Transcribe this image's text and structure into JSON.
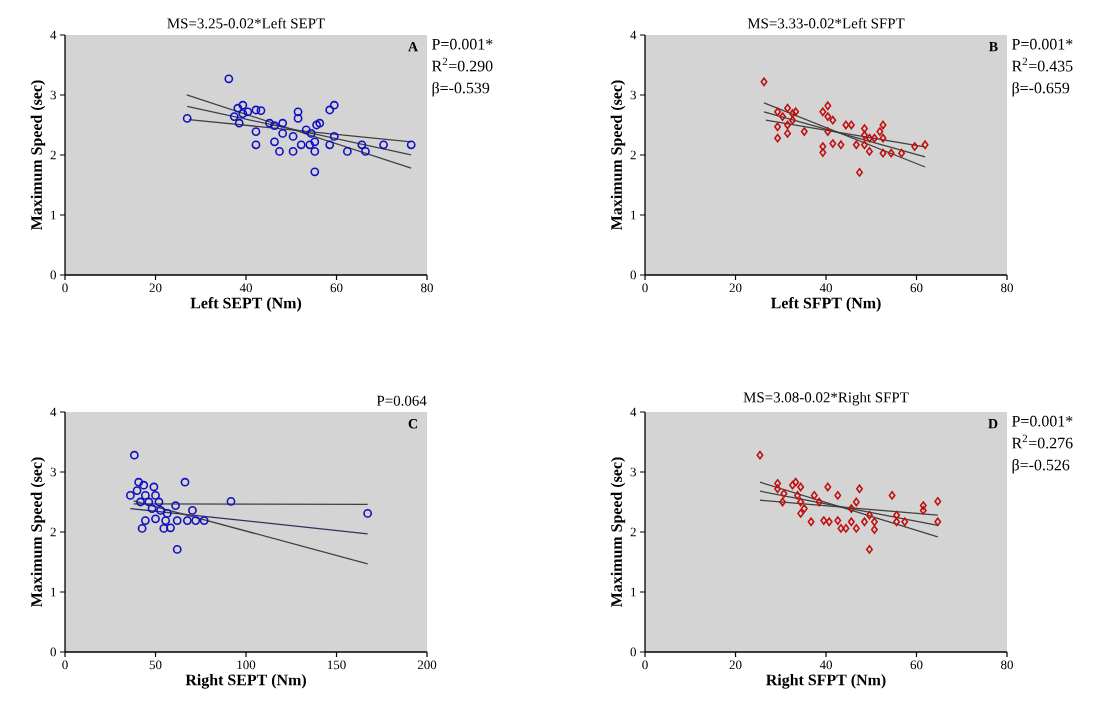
{
  "chart_data": [
    {
      "type": "scatter",
      "title": "MS=3.25-0.02*Left SEPT",
      "xlabel": "Left SEPT (Nm)",
      "ylabel": "Maximum Speed (sec)",
      "xlim": [
        0,
        80
      ],
      "xticks": [
        0,
        20,
        40,
        60,
        80
      ],
      "ylim": [
        0,
        4
      ],
      "yticks": [
        0,
        1,
        2,
        3,
        4
      ],
      "marker": "circle",
      "annotations": [
        "A",
        "P=0.001*",
        "R$^{2}$=0.290",
        "β=-0.539"
      ],
      "series": [
        {
          "color": "#1010c0",
          "x": [
            36.2,
            27.0,
            38.2,
            39.3,
            37.4,
            38.5,
            39.3,
            40.4,
            42.2,
            43.3,
            42.2,
            42.2,
            45.2,
            46.3,
            48.1,
            46.3,
            47.4,
            48.1,
            50.4,
            50.4,
            51.5,
            51.5,
            52.2,
            53.3,
            54.4,
            54.1,
            55.2,
            55.2,
            55.6,
            56.3,
            55.2,
            58.5,
            59.5,
            58.5,
            59.5,
            62.4,
            65.6,
            66.4,
            70.4,
            76.5
          ],
          "values": [
            3.27,
            2.61,
            2.78,
            2.83,
            2.64,
            2.53,
            2.69,
            2.72,
            2.75,
            2.74,
            2.39,
            2.17,
            2.53,
            2.49,
            2.53,
            2.22,
            2.06,
            2.36,
            2.31,
            2.06,
            2.72,
            2.61,
            2.17,
            2.42,
            2.36,
            2.17,
            2.22,
            2.06,
            2.5,
            2.53,
            1.72,
            2.75,
            2.83,
            2.17,
            2.31,
            2.06,
            2.17,
            2.06,
            2.17,
            2.17
          ]
        },
        {
          "type": "line",
          "marker": "none",
          "color": "#404040",
          "x": [
            27.0,
            76.5
          ],
          "values": [
            2.81,
            2.0
          ]
        },
        {
          "type": "line",
          "marker": "none",
          "color": "#404040",
          "x": [
            26.9,
            76.5
          ],
          "values": [
            3.0,
            1.78
          ]
        },
        {
          "type": "line",
          "marker": "none",
          "color": "#404040",
          "x": [
            27.4,
            76.5
          ],
          "values": [
            2.59,
            2.22
          ]
        }
      ]
    },
    {
      "type": "scatter",
      "title": "MS=3.33-0.02*Left SFPT",
      "xlabel": "Left SFPT (Nm)",
      "ylabel": "Maximum Speed (sec)",
      "xlim": [
        0,
        80
      ],
      "xticks": [
        0,
        20,
        40,
        60,
        80
      ],
      "ylim": [
        0,
        4
      ],
      "yticks": [
        0,
        1,
        2,
        3,
        4
      ],
      "marker": "diamond",
      "annotations": [
        "B",
        "P=0.001*",
        "R$^{2}$=0.435",
        "β=-0.659"
      ],
      "series": [
        {
          "color": "#c01010",
          "x": [
            26.3,
            29.3,
            29.3,
            29.3,
            30.4,
            31.5,
            31.5,
            31.5,
            32.6,
            32.6,
            33.3,
            35.2,
            39.3,
            40.4,
            40.4,
            41.5,
            40.4,
            39.3,
            39.3,
            41.5,
            43.3,
            44.4,
            45.6,
            46.7,
            48.5,
            48.5,
            49.6,
            48.5,
            49.6,
            50.7,
            51.9,
            52.6,
            52.6,
            52.6,
            54.4,
            56.7,
            59.6,
            61.9,
            47.4
          ],
          "values": [
            3.22,
            2.72,
            2.47,
            2.28,
            2.64,
            2.78,
            2.5,
            2.36,
            2.69,
            2.58,
            2.72,
            2.39,
            2.72,
            2.82,
            2.64,
            2.58,
            2.39,
            2.14,
            2.04,
            2.19,
            2.17,
            2.5,
            2.5,
            2.17,
            2.44,
            2.33,
            2.28,
            2.17,
            2.06,
            2.28,
            2.39,
            2.5,
            2.28,
            2.03,
            2.03,
            2.03,
            2.14,
            2.17,
            1.71
          ]
        },
        {
          "type": "line",
          "marker": "none",
          "color": "#404040",
          "x": [
            26.3,
            61.9
          ],
          "values": [
            2.72,
            1.97
          ]
        },
        {
          "type": "line",
          "marker": "none",
          "color": "#404040",
          "x": [
            26.3,
            61.9
          ],
          "values": [
            2.87,
            1.8
          ]
        },
        {
          "type": "line",
          "marker": "none",
          "color": "#404040",
          "x": [
            26.7,
            61.5
          ],
          "values": [
            2.58,
            2.14
          ]
        }
      ]
    },
    {
      "type": "scatter",
      "xlabel": "Right SEPT (Nm)",
      "ylabel": "Maximum Speed (sec)",
      "xlim": [
        0,
        200
      ],
      "xticks": [
        0,
        50,
        100,
        150,
        200
      ],
      "ylim": [
        0,
        4
      ],
      "yticks": [
        0,
        1,
        2,
        3,
        4
      ],
      "marker": "circle",
      "annotations": [
        "C",
        "P=0.064"
      ],
      "series": [
        {
          "color": "#1010c0",
          "x": [
            38.3,
            66.3,
            91.7,
            167.2,
            62.0,
            36.1,
            40.7,
            43.5,
            49.1,
            39.8,
            44.4,
            50.0,
            41.7,
            46.3,
            51.9,
            48.1,
            52.8,
            61.1,
            70.4,
            44.4,
            50.0,
            55.6,
            62.0,
            67.6,
            72.2,
            76.9,
            42.6,
            54.6,
            58.3,
            56.5
          ],
          "values": [
            3.28,
            2.83,
            2.51,
            2.31,
            1.71,
            2.61,
            2.83,
            2.78,
            2.75,
            2.69,
            2.61,
            2.61,
            2.5,
            2.5,
            2.5,
            2.39,
            2.36,
            2.44,
            2.36,
            2.19,
            2.22,
            2.19,
            2.19,
            2.19,
            2.19,
            2.19,
            2.06,
            2.06,
            2.07,
            2.31
          ]
        },
        {
          "type": "line",
          "marker": "none",
          "color": "#303060",
          "x": [
            36.1,
            167.2
          ],
          "values": [
            2.39,
            1.97
          ]
        },
        {
          "type": "line",
          "marker": "none",
          "color": "#404040",
          "x": [
            37.9,
            167.2
          ],
          "values": [
            2.47,
            2.46
          ]
        },
        {
          "type": "line",
          "marker": "none",
          "color": "#404040",
          "x": [
            37.9,
            167.2
          ],
          "values": [
            2.52,
            1.47
          ]
        }
      ]
    },
    {
      "type": "scatter",
      "title": "MS=3.08-0.02*Right SFPT",
      "xlabel": "Right SFPT (Nm)",
      "ylabel": "Maximum Speed (sec)",
      "xlim": [
        0,
        80
      ],
      "xticks": [
        0,
        20,
        40,
        60,
        80
      ],
      "ylim": [
        0,
        4
      ],
      "yticks": [
        0,
        1,
        2,
        3,
        4
      ],
      "marker": "diamond",
      "annotations": [
        "D",
        "P=0.001*",
        "R$^{2}$=0.276",
        "β=-0.526"
      ],
      "series": [
        {
          "color": "#c01010",
          "x": [
            25.4,
            29.3,
            29.3,
            30.4,
            30.7,
            32.6,
            33.3,
            33.7,
            34.4,
            34.4,
            35.2,
            34.4,
            36.7,
            37.4,
            38.5,
            40.4,
            42.6,
            39.5,
            40.7,
            42.6,
            43.3,
            44.4,
            45.6,
            45.6,
            46.7,
            47.4,
            46.7,
            48.5,
            49.6,
            50.7,
            50.7,
            49.6,
            54.6,
            55.6,
            55.6,
            57.4,
            61.5,
            61.5,
            64.7,
            64.7
          ],
          "values": [
            3.28,
            2.81,
            2.72,
            2.5,
            2.64,
            2.78,
            2.83,
            2.61,
            2.75,
            2.5,
            2.39,
            2.31,
            2.17,
            2.61,
            2.5,
            2.75,
            2.61,
            2.19,
            2.17,
            2.19,
            2.06,
            2.06,
            2.17,
            2.39,
            2.5,
            2.72,
            2.06,
            2.17,
            2.28,
            2.17,
            2.04,
            1.71,
            2.61,
            2.28,
            2.17,
            2.17,
            2.44,
            2.36,
            2.51,
            2.17
          ]
        },
        {
          "type": "line",
          "marker": "none",
          "color": "#404040",
          "x": [
            25.4,
            64.7
          ],
          "values": [
            2.68,
            2.11
          ]
        },
        {
          "type": "line",
          "marker": "none",
          "color": "#404040",
          "x": [
            25.4,
            64.7
          ],
          "values": [
            2.83,
            1.92
          ]
        },
        {
          "type": "line",
          "marker": "none",
          "color": "#404040",
          "x": [
            25.4,
            64.7
          ],
          "values": [
            2.53,
            2.28
          ]
        }
      ]
    }
  ]
}
